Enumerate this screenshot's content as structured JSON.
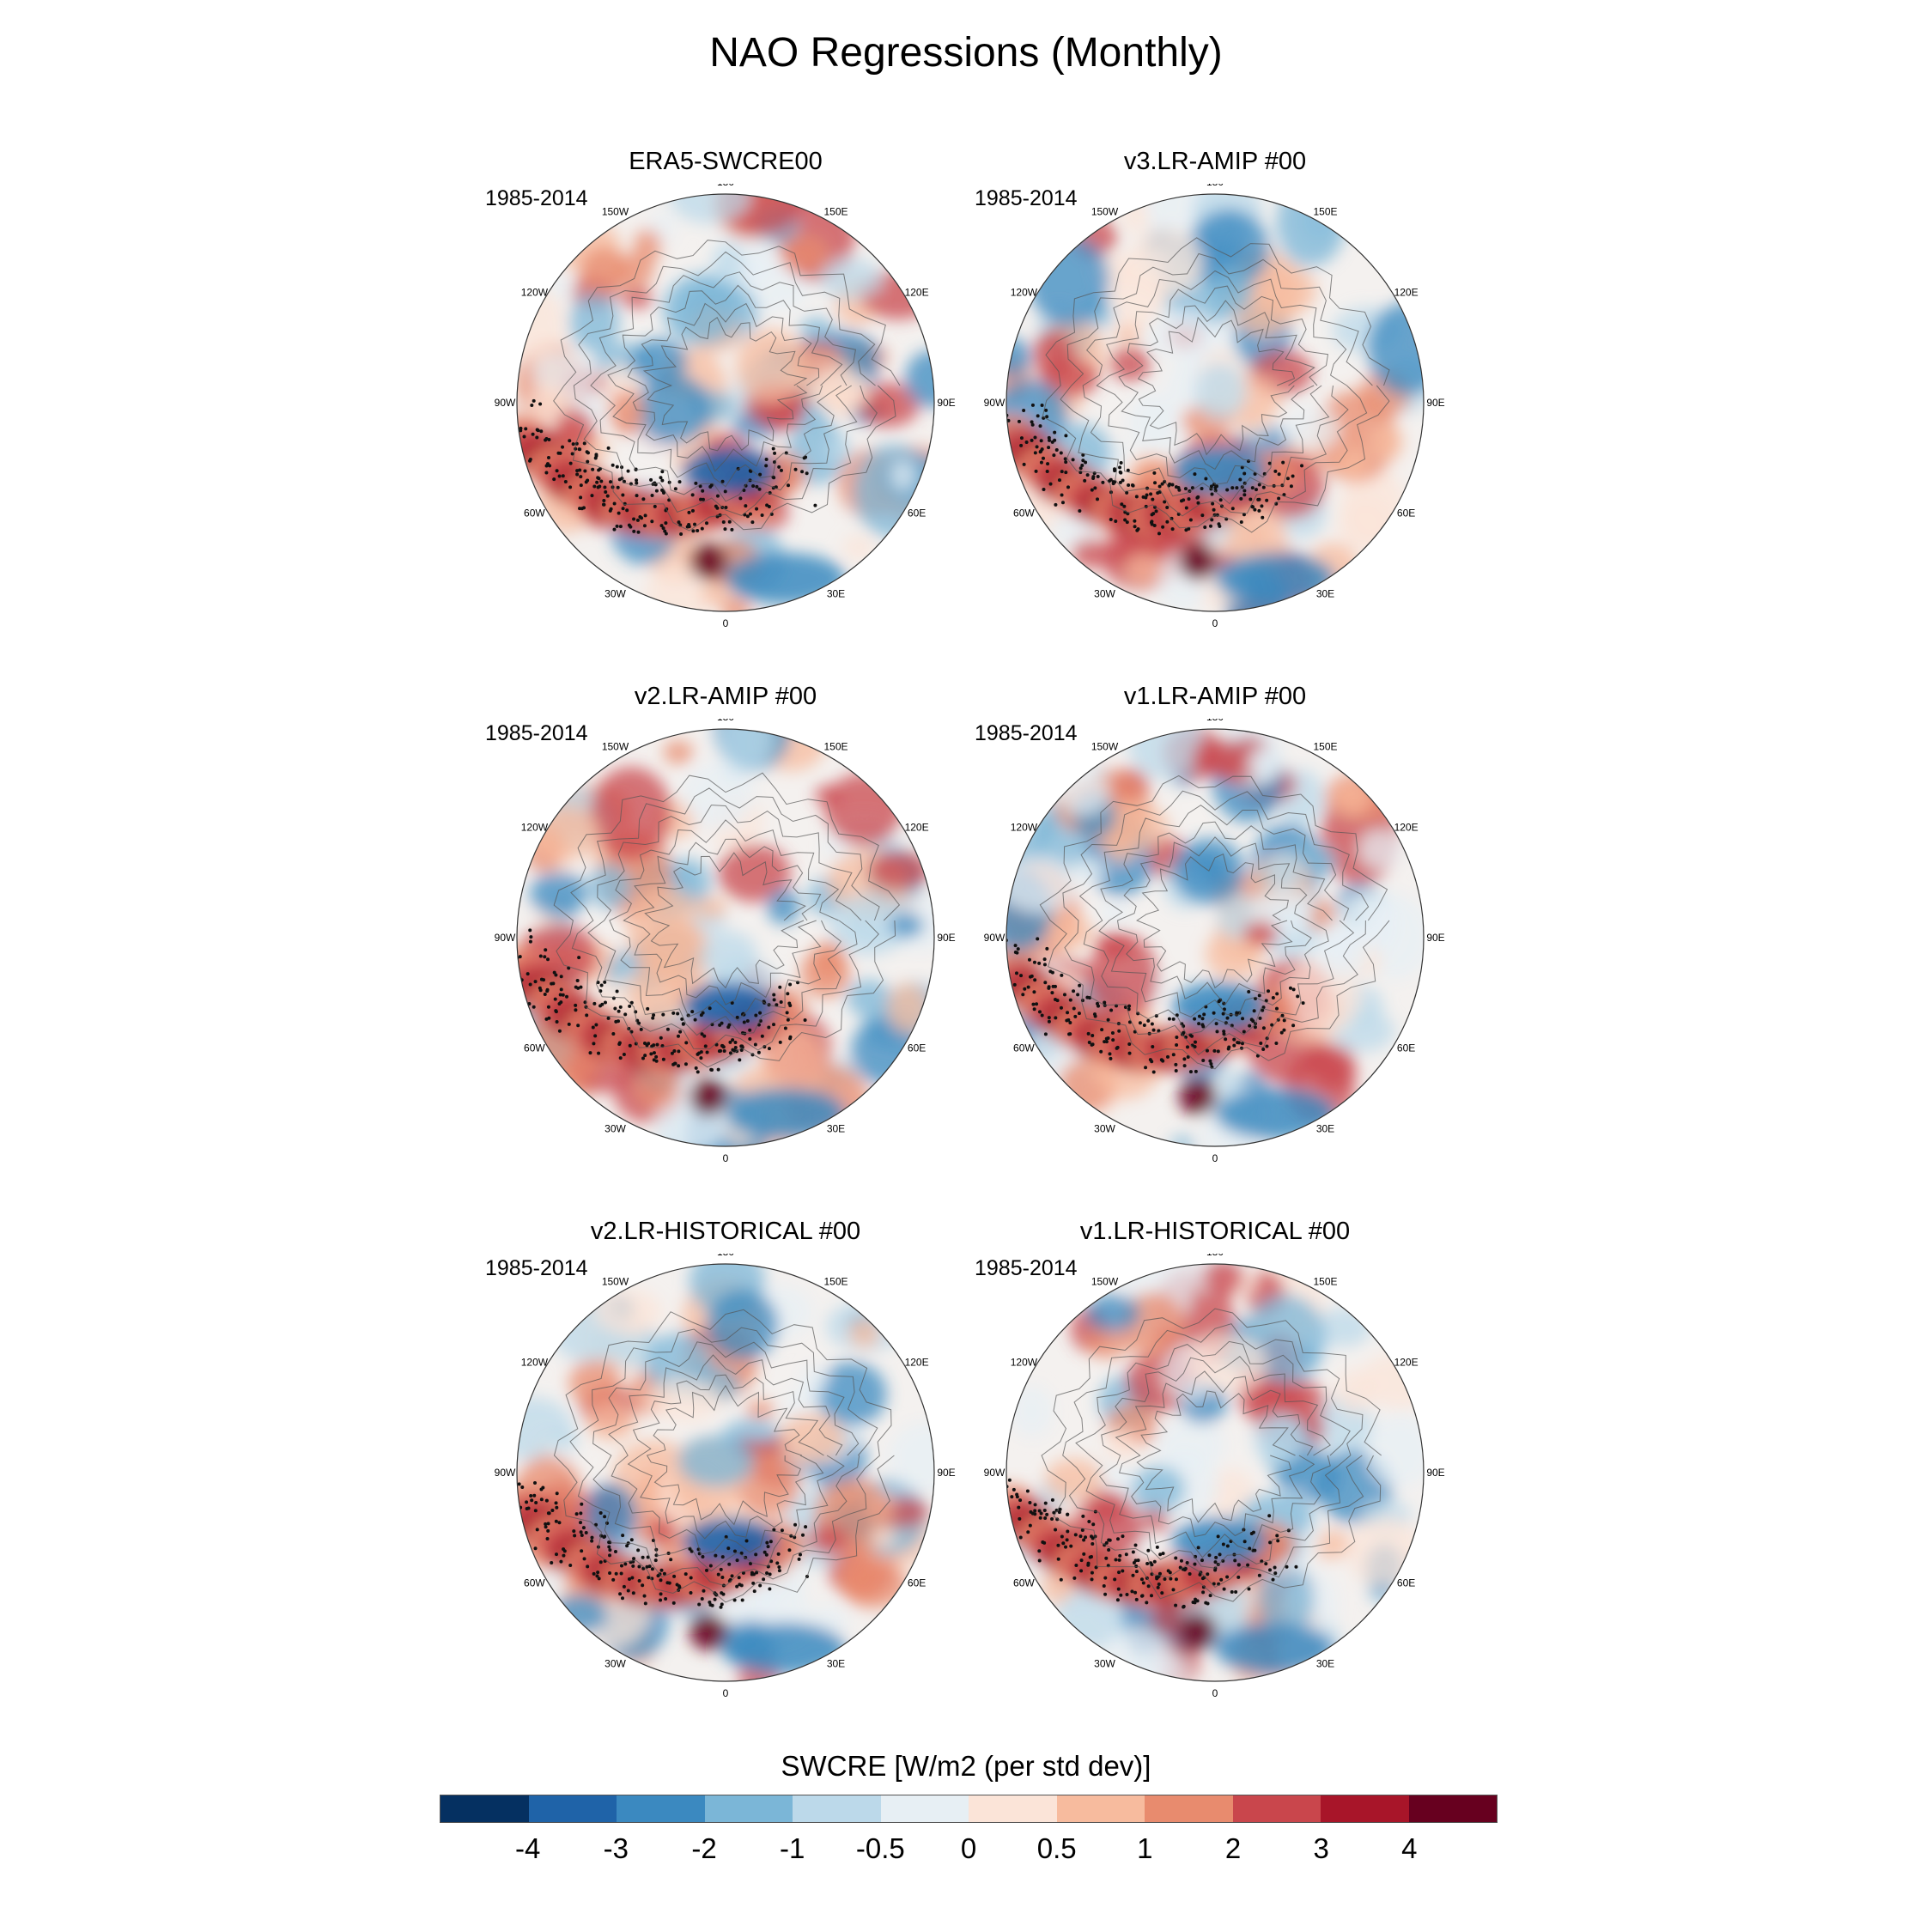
{
  "title": "NAO Regressions (Monthly)",
  "panels": [
    {
      "title": "ERA5-SWCRE00",
      "period": "1985-2014"
    },
    {
      "title": "v3.LR-AMIP  #00",
      "period": "1985-2014"
    },
    {
      "title": "v2.LR-AMIP  #00",
      "period": "1985-2014"
    },
    {
      "title": "v1.LR-AMIP  #00",
      "period": "1985-2014"
    },
    {
      "title": "v2.LR-HISTORICAL  #00",
      "period": "1985-2014"
    },
    {
      "title": "v1.LR-HISTORICAL  #00",
      "period": "1985-2014"
    }
  ],
  "lon_labels": [
    "180",
    "150E",
    "120E",
    "90E",
    "60E",
    "30E",
    "0",
    "30W",
    "60W",
    "90W",
    "120W",
    "150W"
  ],
  "colorbar": {
    "title": "SWCRE [W/m2 (per std dev)]",
    "labels": [
      "-4",
      "-3",
      "-2",
      "-1",
      "-0.5",
      "0",
      "0.5",
      "1",
      "2",
      "3",
      "4"
    ],
    "colors": [
      "#053061",
      "#1f63a8",
      "#3b89c0",
      "#7bb6d7",
      "#bcd9ea",
      "#e7eff4",
      "#fbe4d8",
      "#f7bb9e",
      "#e88b6e",
      "#c9464c",
      "#a81529",
      "#67001f"
    ]
  }
}
